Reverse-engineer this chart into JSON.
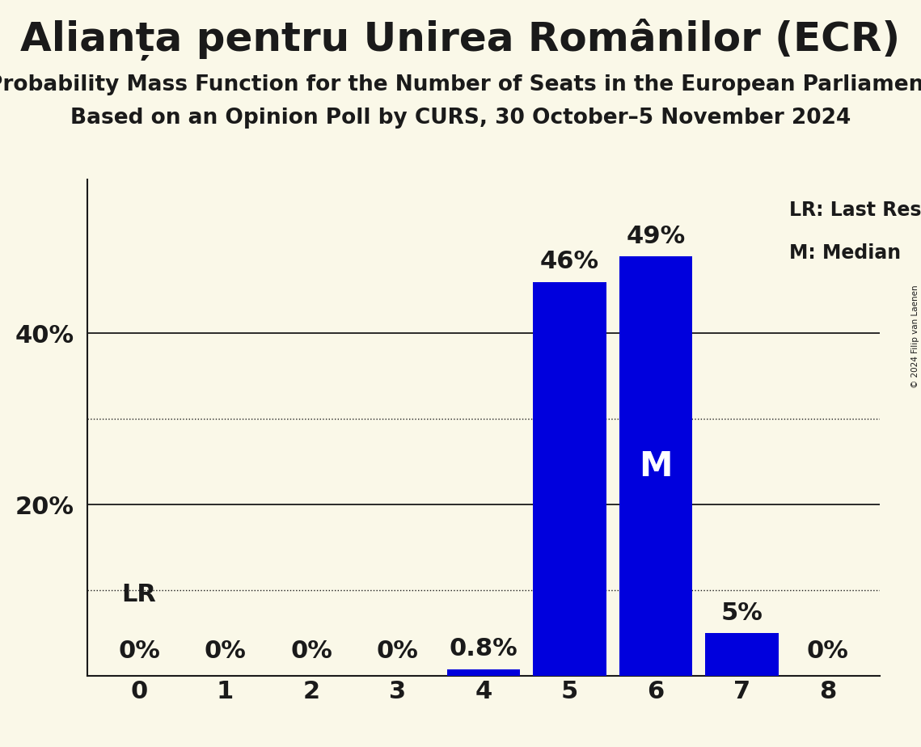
{
  "title": "Alianța pentru Unirea Românilor (ECR)",
  "subtitle1": "Probability Mass Function for the Number of Seats in the European Parliament",
  "subtitle2": "Based on an Opinion Poll by CURS, 30 October–5 November 2024",
  "copyright": "© 2024 Filip van Laenen",
  "seats": [
    0,
    1,
    2,
    3,
    4,
    5,
    6,
    7,
    8
  ],
  "probabilities": [
    0.0,
    0.0,
    0.0,
    0.0,
    0.8,
    46.0,
    49.0,
    5.0,
    0.0
  ],
  "bar_labels": [
    "0%",
    "0%",
    "0%",
    "0%",
    "0.8%",
    "46%",
    "49%",
    "5%",
    "0%"
  ],
  "bar_color": "#0000dd",
  "background_color": "#faf8e8",
  "text_color": "#1a1a1a",
  "title_fontsize": 36,
  "subtitle_fontsize": 19,
  "ytick_positions": [
    20.0,
    40.0
  ],
  "ytick_labels": [
    "20%",
    "40%"
  ],
  "solid_gridlines": [
    20.0,
    40.0
  ],
  "dotted_gridlines": [
    10.0,
    30.0
  ],
  "ylim": [
    0,
    58
  ],
  "median_seat": 6,
  "median_label": "M",
  "lr_label": "LR",
  "legend_lr": "LR: Last Result",
  "legend_m": "M: Median",
  "annotation_fontsize": 22,
  "median_fontsize": 30,
  "lr_fontsize": 22,
  "legend_fontsize": 17,
  "tick_fontsize": 22
}
